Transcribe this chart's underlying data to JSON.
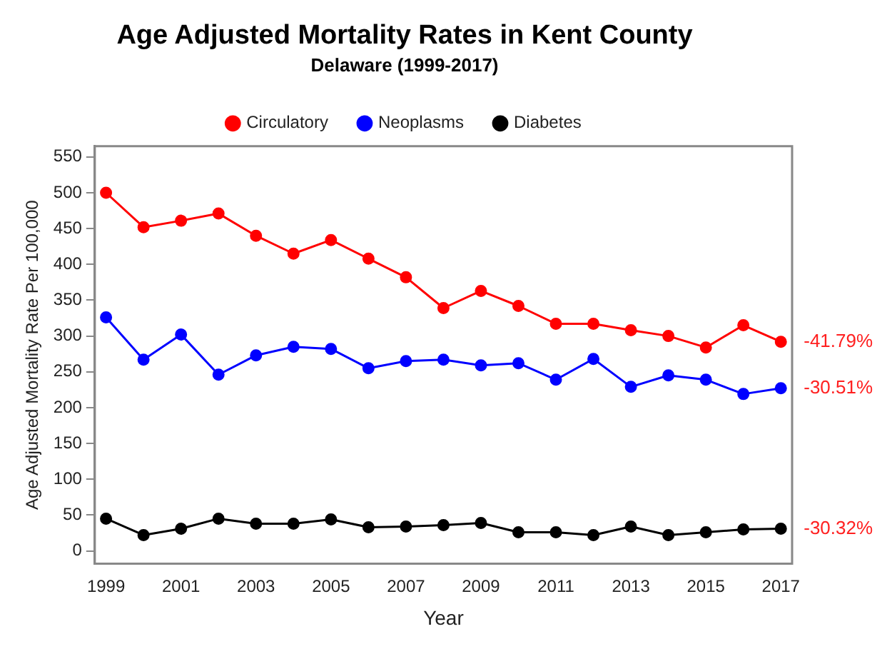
{
  "chart_data": {
    "type": "line",
    "title": "Age Adjusted Mortality Rates in Kent County",
    "subtitle": "Delaware (1999-2017)",
    "xlabel": "Year",
    "ylabel": "Age Adjusted Mortality Rate Per 100,000",
    "x": [
      1999,
      2000,
      2001,
      2002,
      2003,
      2004,
      2005,
      2006,
      2007,
      2008,
      2009,
      2010,
      2011,
      2012,
      2013,
      2014,
      2015,
      2016,
      2017
    ],
    "series": [
      {
        "name": "Circulatory",
        "color": "#ff0000",
        "values": [
          500,
          452,
          461,
          471,
          440,
          415,
          434,
          408,
          382,
          339,
          363,
          342,
          317,
          317,
          308,
          300,
          284,
          315,
          292
        ]
      },
      {
        "name": "Neoplasms",
        "color": "#0000ff",
        "values": [
          326,
          267,
          302,
          246,
          273,
          285,
          282,
          255,
          265,
          267,
          259,
          262,
          239,
          268,
          229,
          245,
          239,
          219,
          227
        ]
      },
      {
        "name": "Diabetes",
        "color": "#000000",
        "values": [
          45,
          22,
          31,
          45,
          38,
          38,
          44,
          33,
          34,
          36,
          39,
          26,
          26,
          22,
          34,
          22,
          26,
          30,
          31
        ]
      }
    ],
    "xlim": [
      1998.7,
      2017.3
    ],
    "xticks": [
      1999,
      2001,
      2003,
      2005,
      2007,
      2009,
      2011,
      2013,
      2015,
      2017
    ],
    "ylim": [
      -18,
      565
    ],
    "yticks": [
      0,
      50,
      100,
      150,
      200,
      250,
      300,
      350,
      400,
      450,
      500,
      550
    ],
    "annotations": [
      "-41.79%",
      "-30.51%",
      "-30.32%"
    ],
    "grid": false,
    "legend": "top",
    "marker": "circle",
    "line_style": "solid"
  }
}
